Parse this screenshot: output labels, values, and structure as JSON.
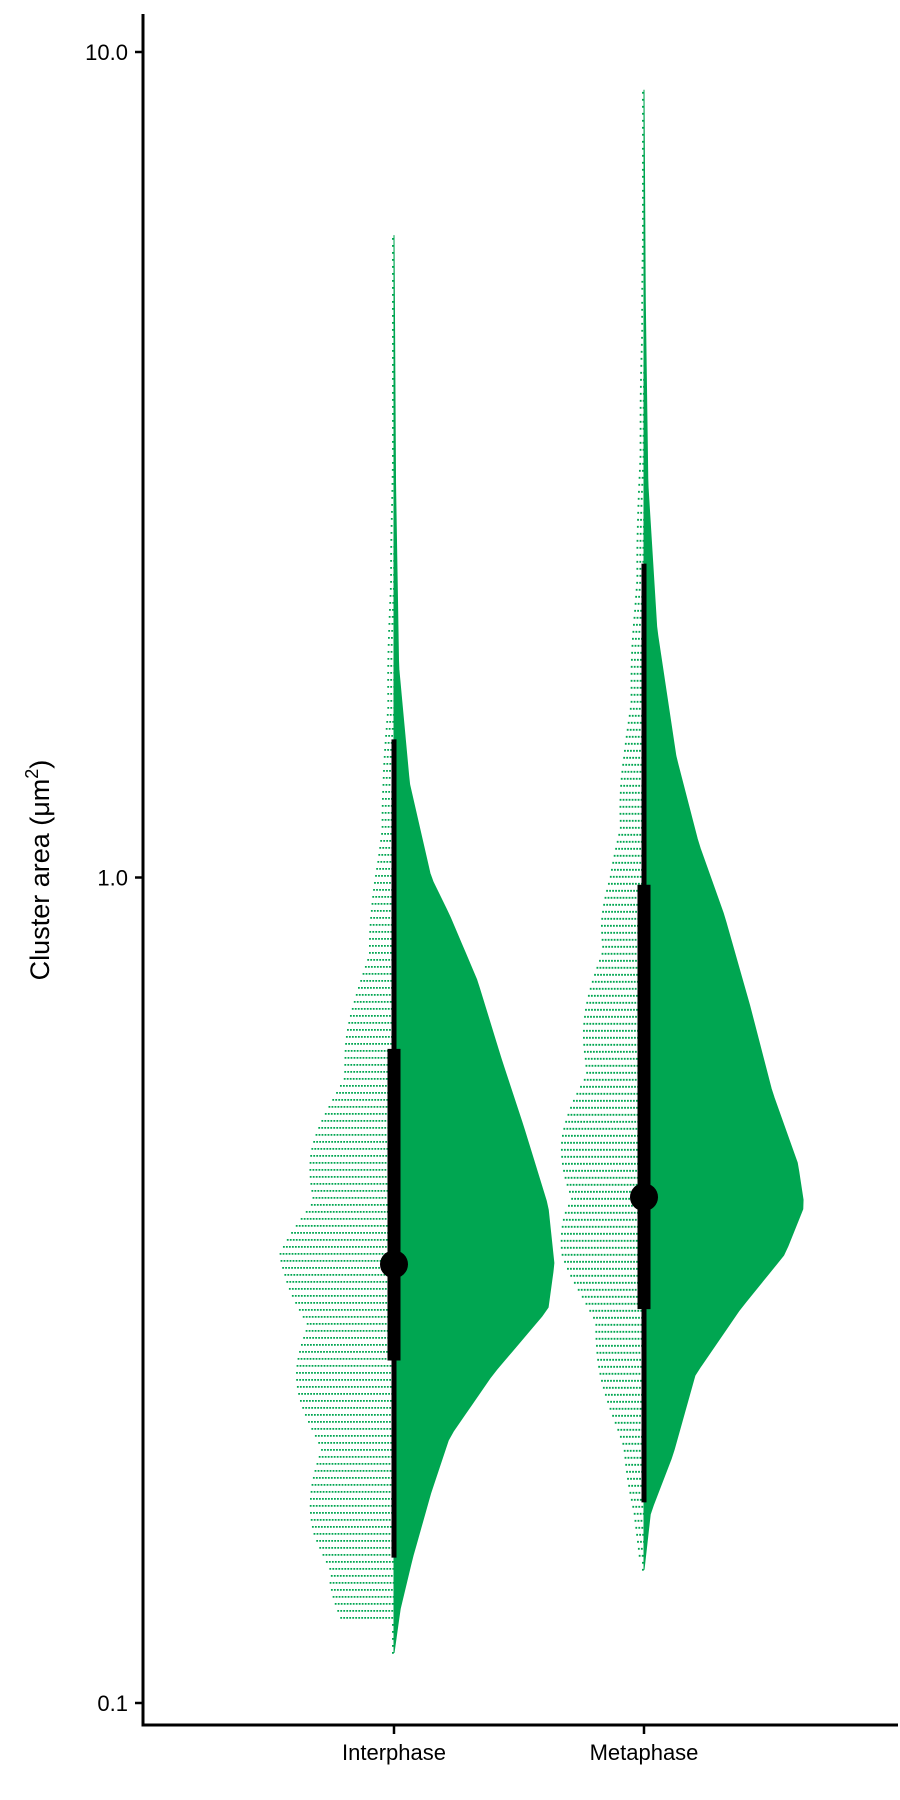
{
  "chart_data": {
    "type": "raincloud",
    "ylabel": "Cluster area (μm²)",
    "ylabel_main": "Cluster area (μm",
    "ylabel_sup": "2",
    "ylabel_end": ")",
    "y_scale": "log10",
    "ylim": [
      0.1,
      10.0
    ],
    "y_ticks": [
      0.1,
      1.0,
      10.0
    ],
    "y_tick_labels": [
      "0.1",
      "1.0",
      "10.0"
    ],
    "categories": [
      "Interphase",
      "Metaphase"
    ],
    "color": "#00a651",
    "groups": [
      {
        "name": "Interphase",
        "median": 0.34,
        "q1": 0.26,
        "q3": 0.62,
        "whisker_low": 0.15,
        "whisker_high": 1.47,
        "data_min": 0.115,
        "data_max": 6.0,
        "density": [
          [
            0.115,
            0.0
          ],
          [
            0.13,
            0.02
          ],
          [
            0.15,
            0.06
          ],
          [
            0.18,
            0.12
          ],
          [
            0.21,
            0.18
          ],
          [
            0.25,
            0.32
          ],
          [
            0.3,
            0.5
          ],
          [
            0.34,
            0.52
          ],
          [
            0.4,
            0.5
          ],
          [
            0.5,
            0.42
          ],
          [
            0.6,
            0.35
          ],
          [
            0.75,
            0.27
          ],
          [
            0.9,
            0.18
          ],
          [
            1.0,
            0.12
          ],
          [
            1.3,
            0.05
          ],
          [
            1.8,
            0.015
          ],
          [
            3.0,
            0.005
          ],
          [
            6.0,
            0.0
          ]
        ],
        "dot_hist": [
          [
            0.125,
            0.45
          ],
          [
            0.14,
            0.65
          ],
          [
            0.16,
            0.72
          ],
          [
            0.18,
            0.74
          ],
          [
            0.21,
            0.78
          ],
          [
            0.25,
            0.86
          ],
          [
            0.29,
            0.92
          ],
          [
            0.33,
            0.96
          ],
          [
            0.35,
            1.0
          ],
          [
            0.38,
            0.92
          ],
          [
            0.42,
            0.82
          ],
          [
            0.47,
            0.72
          ],
          [
            0.53,
            0.6
          ],
          [
            0.6,
            0.48
          ],
          [
            0.7,
            0.36
          ],
          [
            0.8,
            0.27
          ],
          [
            0.92,
            0.2
          ],
          [
            1.05,
            0.15
          ],
          [
            1.3,
            0.1
          ],
          [
            1.6,
            0.07
          ],
          [
            2.0,
            0.05
          ],
          [
            2.8,
            0.025
          ],
          [
            4.0,
            0.012
          ],
          [
            6.0,
            0.004
          ]
        ]
      },
      {
        "name": "Metaphase",
        "median": 0.41,
        "q1": 0.3,
        "q3": 0.98,
        "whisker_low": 0.175,
        "whisker_high": 2.4,
        "data_min": 0.145,
        "data_max": 9.0,
        "density": [
          [
            0.145,
            0.0
          ],
          [
            0.17,
            0.02
          ],
          [
            0.2,
            0.09
          ],
          [
            0.25,
            0.16
          ],
          [
            0.3,
            0.3
          ],
          [
            0.35,
            0.44
          ],
          [
            0.4,
            0.5
          ],
          [
            0.45,
            0.48
          ],
          [
            0.55,
            0.4
          ],
          [
            0.7,
            0.33
          ],
          [
            0.9,
            0.25
          ],
          [
            1.1,
            0.17
          ],
          [
            1.4,
            0.1
          ],
          [
            2.0,
            0.04
          ],
          [
            3.0,
            0.012
          ],
          [
            5.0,
            0.004
          ],
          [
            9.0,
            0.0
          ]
        ],
        "dot_hist": [
          [
            0.15,
            0.05
          ],
          [
            0.17,
            0.09
          ],
          [
            0.2,
            0.2
          ],
          [
            0.23,
            0.32
          ],
          [
            0.27,
            0.45
          ],
          [
            0.31,
            0.58
          ],
          [
            0.35,
            0.72
          ],
          [
            0.39,
            0.78
          ],
          [
            0.43,
            0.76
          ],
          [
            0.48,
            0.72
          ],
          [
            0.54,
            0.66
          ],
          [
            0.6,
            0.58
          ],
          [
            0.68,
            0.52
          ],
          [
            0.78,
            0.46
          ],
          [
            0.88,
            0.4
          ],
          [
            1.0,
            0.3
          ],
          [
            1.2,
            0.24
          ],
          [
            1.4,
            0.18
          ],
          [
            1.7,
            0.13
          ],
          [
            2.1,
            0.09
          ],
          [
            2.7,
            0.06
          ],
          [
            3.5,
            0.04
          ],
          [
            5.0,
            0.025
          ],
          [
            7.0,
            0.01
          ],
          [
            9.0,
            0.004
          ]
        ]
      }
    ]
  }
}
